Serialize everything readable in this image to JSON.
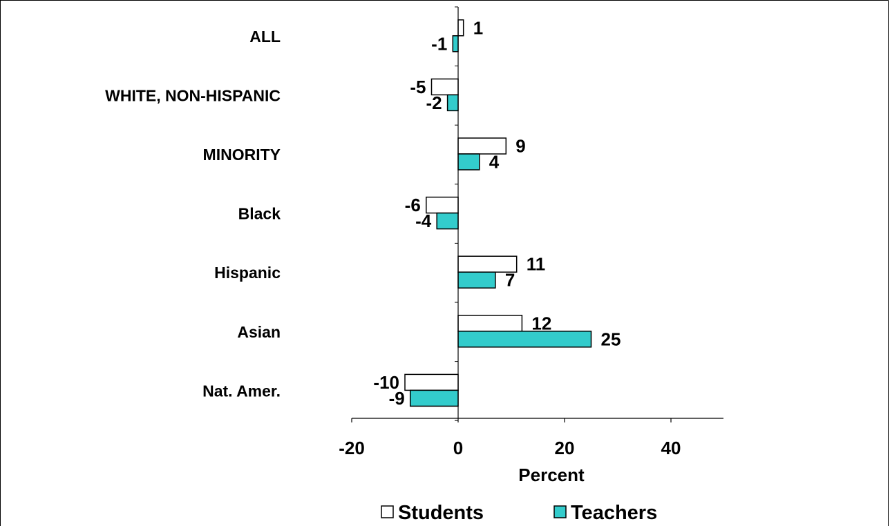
{
  "chart_data": {
    "type": "bar",
    "orientation": "horizontal",
    "categories": [
      "ALL",
      "WHITE, NON-HISPANIC",
      "MINORITY",
      "Black",
      "Hispanic",
      "Asian",
      "Nat. Amer."
    ],
    "series": [
      {
        "name": "Students",
        "values": [
          1,
          -5,
          9,
          -6,
          11,
          12,
          -10
        ],
        "color": "#ffffff"
      },
      {
        "name": "Teachers",
        "values": [
          -1,
          -2,
          4,
          -4,
          7,
          25,
          -9
        ],
        "color": "#33cccc"
      }
    ],
    "xlabel": "Percent",
    "xlim": [
      -20,
      50
    ],
    "xticks": [
      -20,
      0,
      20,
      40
    ],
    "grid": false,
    "legend_position": "bottom"
  }
}
